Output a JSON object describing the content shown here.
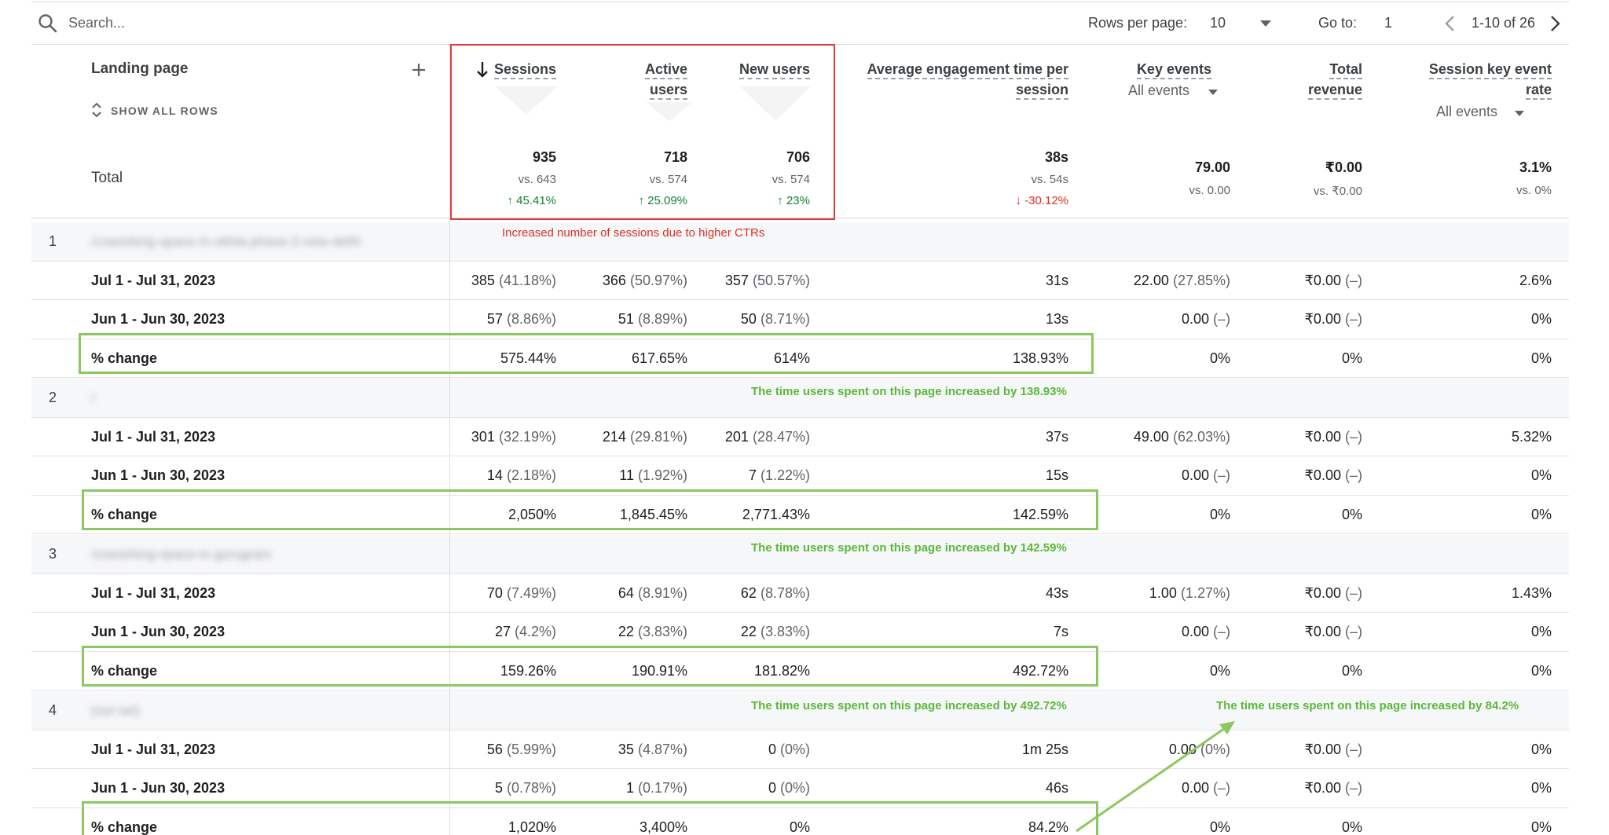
{
  "toolbar": {
    "search_placeholder": "Search...",
    "rows_per_page_label": "Rows per page:",
    "rows_per_page_value": "10",
    "goto_label": "Go to:",
    "goto_value": "1",
    "range_text": "1-10 of 26"
  },
  "header": {
    "landing_page": "Landing page",
    "show_all_rows": "SHOW ALL ROWS",
    "sessions": "Sessions",
    "active_users_1": "Active",
    "active_users_2": "users",
    "new_users": "New users",
    "avg_eng_1": "Average engagement time per",
    "avg_eng_2": "session",
    "key_events": "Key events",
    "key_events_sub": "All events",
    "total_revenue_1": "Total",
    "total_revenue_2": "revenue",
    "session_key_1": "Session key event",
    "session_key_2": "rate",
    "session_key_sub": "All events"
  },
  "totals": {
    "label": "Total",
    "sessions": {
      "value": "935",
      "vs": "vs. 643",
      "change": "45.41%"
    },
    "active_users": {
      "value": "718",
      "vs": "vs. 574",
      "change": "25.09%"
    },
    "new_users": {
      "value": "706",
      "vs": "vs. 574",
      "change": "23%"
    },
    "avg_eng": {
      "value": "38s",
      "vs": "vs. 54s",
      "change": "-30.12%"
    },
    "key_events": {
      "value": "79.00",
      "vs": "vs. 0.00"
    },
    "total_revenue": {
      "value": "₹0.00",
      "vs": "vs. ₹0.00"
    },
    "session_key_rate": {
      "value": "3.1%",
      "vs": "vs. 0%"
    }
  },
  "annotations": {
    "sessions_note": "Increased number of sessions due to higher CTRs",
    "g1": "The time users spent on this page increased by 138.93%",
    "g2": "The time users spent on this page increased by 142.59%",
    "g3": "The time users spent on this page increased by 492.72%",
    "g4": "The time users spent on this page increased by 84.2%"
  },
  "groups": [
    {
      "num": "1",
      "page": "/coworking-space-in-okhla-phase-2-new-delhi",
      "rows": [
        {
          "label": "Jul 1 - Jul 31, 2023",
          "s": "385",
          "sp": "(41.18%)",
          "a": "366",
          "ap": "(50.97%)",
          "n": "357",
          "np": "(50.57%)",
          "t": "31s",
          "k": "22.00",
          "kp": "(27.85%)",
          "r": "₹0.00",
          "rp": "(–)",
          "sk": "2.6%"
        },
        {
          "label": "Jun 1 - Jun 30, 2023",
          "s": "57",
          "sp": "(8.86%)",
          "a": "51",
          "ap": "(8.89%)",
          "n": "50",
          "np": "(8.71%)",
          "t": "13s",
          "k": "0.00",
          "kp": "(–)",
          "r": "₹0.00",
          "rp": "(–)",
          "sk": "0%"
        },
        {
          "label": "% change",
          "s": "575.44%",
          "sp": "",
          "a": "617.65%",
          "ap": "",
          "n": "614%",
          "np": "",
          "t": "138.93%",
          "k": "0%",
          "kp": "",
          "r": "0%",
          "rp": "",
          "sk": "0%"
        }
      ]
    },
    {
      "num": "2",
      "page": "/",
      "rows": [
        {
          "label": "Jul 1 - Jul 31, 2023",
          "s": "301",
          "sp": "(32.19%)",
          "a": "214",
          "ap": "(29.81%)",
          "n": "201",
          "np": "(28.47%)",
          "t": "37s",
          "k": "49.00",
          "kp": "(62.03%)",
          "r": "₹0.00",
          "rp": "(–)",
          "sk": "5.32%"
        },
        {
          "label": "Jun 1 - Jun 30, 2023",
          "s": "14",
          "sp": "(2.18%)",
          "a": "11",
          "ap": "(1.92%)",
          "n": "7",
          "np": "(1.22%)",
          "t": "15s",
          "k": "0.00",
          "kp": "(–)",
          "r": "₹0.00",
          "rp": "(–)",
          "sk": "0%"
        },
        {
          "label": "% change",
          "s": "2,050%",
          "sp": "",
          "a": "1,845.45%",
          "ap": "",
          "n": "2,771.43%",
          "np": "",
          "t": "142.59%",
          "k": "0%",
          "kp": "",
          "r": "0%",
          "rp": "",
          "sk": "0%"
        }
      ]
    },
    {
      "num": "3",
      "page": "/coworking-space-in-gurugram",
      "rows": [
        {
          "label": "Jul 1 - Jul 31, 2023",
          "s": "70",
          "sp": "(7.49%)",
          "a": "64",
          "ap": "(8.91%)",
          "n": "62",
          "np": "(8.78%)",
          "t": "43s",
          "k": "1.00",
          "kp": "(1.27%)",
          "r": "₹0.00",
          "rp": "(–)",
          "sk": "1.43%"
        },
        {
          "label": "Jun 1 - Jun 30, 2023",
          "s": "27",
          "sp": "(4.2%)",
          "a": "22",
          "ap": "(3.83%)",
          "n": "22",
          "np": "(3.83%)",
          "t": "7s",
          "k": "0.00",
          "kp": "(–)",
          "r": "₹0.00",
          "rp": "(–)",
          "sk": "0%"
        },
        {
          "label": "% change",
          "s": "159.26%",
          "sp": "",
          "a": "190.91%",
          "ap": "",
          "n": "181.82%",
          "np": "",
          "t": "492.72%",
          "k": "0%",
          "kp": "",
          "r": "0%",
          "rp": "",
          "sk": "0%"
        }
      ]
    },
    {
      "num": "4",
      "page": "(not set)",
      "rows": [
        {
          "label": "Jul 1 - Jul 31, 2023",
          "s": "56",
          "sp": "(5.99%)",
          "a": "35",
          "ap": "(4.87%)",
          "n": "0",
          "np": "(0%)",
          "t": "1m 25s",
          "k": "0.00",
          "kp": "(0%)",
          "r": "₹0.00",
          "rp": "(–)",
          "sk": "0%"
        },
        {
          "label": "Jun 1 - Jun 30, 2023",
          "s": "5",
          "sp": "(0.78%)",
          "a": "1",
          "ap": "(0.17%)",
          "n": "0",
          "np": "(0%)",
          "t": "46s",
          "k": "0.00",
          "kp": "(–)",
          "r": "₹0.00",
          "rp": "(–)",
          "sk": "0%"
        },
        {
          "label": "% change",
          "s": "1,020%",
          "sp": "",
          "a": "3,400%",
          "ap": "",
          "n": "0%",
          "np": "",
          "t": "84.2%",
          "k": "0%",
          "kp": "",
          "r": "0%",
          "rp": "",
          "sk": "0%"
        }
      ]
    }
  ],
  "colors": {
    "accent_red": "#e53935",
    "accent_green": "#8cc862",
    "positive": "#188038",
    "negative": "#d93025"
  },
  "icons": [
    "search-icon",
    "dropdown-caret-icon",
    "chevron-left-icon",
    "chevron-right-icon",
    "add-icon",
    "expand-collapse-icon",
    "sort-down-arrow-icon",
    "arrow-up-icon",
    "arrow-down-icon"
  ]
}
